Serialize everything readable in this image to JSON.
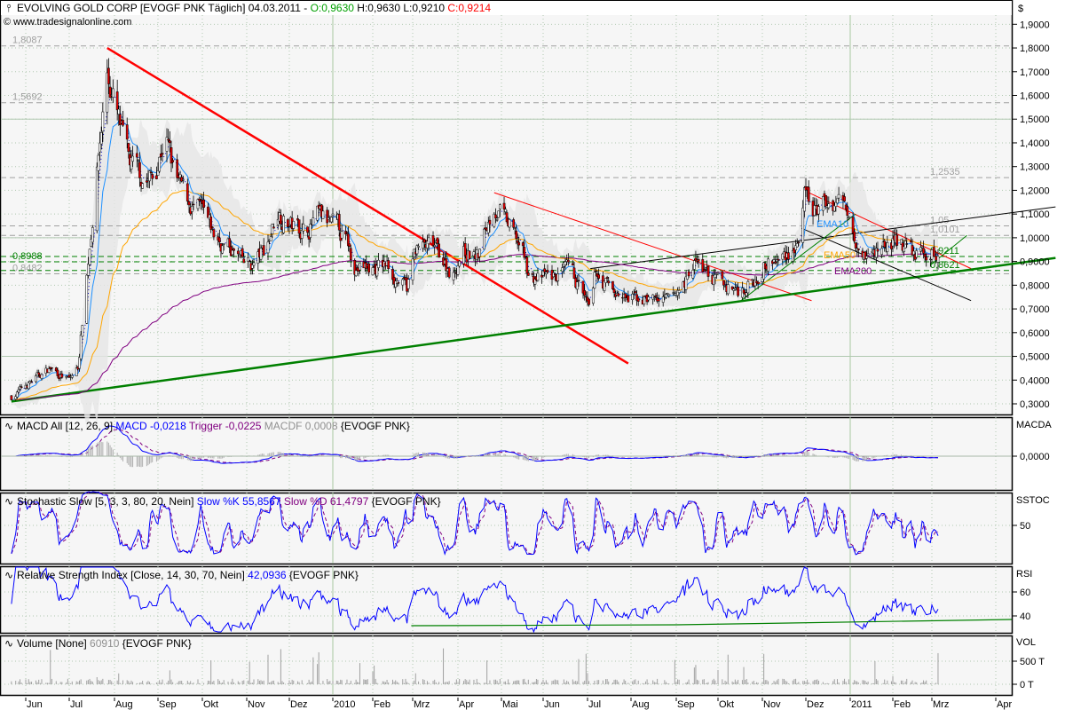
{
  "header": {
    "title": "EVOLVING GOLD CORP [EVOGF PNK  Täglich] 04.03.2011 - ",
    "open": "O:0,9630",
    "high": " H:0,9630",
    "low": " L:0,9210",
    "close": " C:0,9214",
    "copyright": "www.tradesignalonline.com",
    "currency": "$"
  },
  "colors": {
    "open": "#00a000",
    "close": "#ff0000",
    "up_candle": "#ffffff",
    "down_candle": "#e00000",
    "ema10": "#1e90ff",
    "ema50": "#ffa500",
    "ema200": "#800080",
    "trend_red": "#ff0000",
    "trend_green": "#008000",
    "trend_black": "#000000"
  },
  "price_axis": [
    "1,9000",
    "1,8000",
    "1,7000",
    "1,6000",
    "1,5000",
    "1,4000",
    "1,3000",
    "1,2000",
    "1,1000",
    "1,0000",
    "0,9000",
    "0,8000",
    "0,7000",
    "0,6000",
    "0,5000",
    "0,4000",
    "0,3000"
  ],
  "levels": [
    {
      "value": 1.8087,
      "label": "1,8087",
      "color": "#a0a0a0",
      "side": "left"
    },
    {
      "value": 1.5692,
      "label": "1,5692",
      "color": "#a0a0a0",
      "side": "left"
    },
    {
      "value": 0.8988,
      "label": "0,8988",
      "color": "#008000",
      "side": "left"
    },
    {
      "value": 0.8482,
      "label": "0,8482",
      "color": "#a0a0a0",
      "side": "left"
    },
    {
      "value": 1.2535,
      "label": "1,2535",
      "color": "#a0a0a0",
      "side": "right"
    },
    {
      "value": 1.05,
      "label": "1,05",
      "color": "#a0a0a0",
      "side": "right"
    },
    {
      "value": 1.0101,
      "label": "1,0101",
      "color": "#a0a0a0",
      "side": "right"
    },
    {
      "value": 0.9211,
      "label": "0,9211",
      "color": "#008000",
      "side": "right"
    },
    {
      "value": 0.8621,
      "label": "0,8621",
      "color": "#008000",
      "side": "right"
    }
  ],
  "ema_labels": {
    "ema10": "EMA10",
    "ema50": "EMA50",
    "ema200": "EMA200"
  },
  "macd": {
    "title": "MACD All [12, 26, 9]",
    "macd": " MACD -0,0218",
    "trigger": " Trigger -0,0225",
    "macdf": " MACDF 0,0008",
    "symbol": " {EVOGF PNK}",
    "axis_name": "MACDA",
    "axis_ticks": [
      "0,0000"
    ]
  },
  "stochastic": {
    "title": "Stochastic Slow [5, 3, 3, 80, 20, Nein]",
    "k": " Slow %K 55,8567",
    "d": " Slow %D 61,4797",
    "symbol": " {EVOGF PNK}",
    "axis_name": "SSTOC",
    "axis_ticks": [
      "50"
    ]
  },
  "rsi": {
    "title": "Relative Strength Index [Close, 14, 30, 70, Nein]",
    "value": " 42,0936",
    "symbol": " {EVOGF PNK}",
    "axis_name": "RSI",
    "axis_ticks": [
      "60",
      "40"
    ]
  },
  "volume": {
    "title": "Volume [None]",
    "value": " 60910",
    "symbol": " {EVOGF PNK}",
    "axis_name": "VOL",
    "axis_ticks": [
      "500 T",
      "0 T"
    ]
  },
  "x_axis": [
    "Jun",
    "Jul",
    "Aug",
    "Sep",
    "Okt",
    "Nov",
    "Dez",
    "2010",
    "Feb",
    "Mrz",
    "Apr",
    "Mai",
    "Jun",
    "Jul",
    "Aug",
    "Sep",
    "Okt",
    "Nov",
    "Dez",
    "2011",
    "Feb",
    "Mrz",
    "Apr"
  ],
  "chart_data": {
    "type": "candlestick",
    "symbol": "EVOGF PNK",
    "ylim": [
      0.3,
      1.9
    ],
    "grid": true,
    "closes": [
      [
        "2009-05-22",
        0.33
      ],
      [
        "2009-06-06",
        0.4
      ],
      [
        "2009-06-18",
        0.45
      ],
      [
        "2009-07-01",
        0.4
      ],
      [
        "2009-07-07",
        0.45
      ],
      [
        "2009-07-13",
        0.85
      ],
      [
        "2009-07-17",
        1.1
      ],
      [
        "2009-07-21",
        1.35
      ],
      [
        "2009-07-27",
        1.7
      ],
      [
        "2009-08-05",
        1.45
      ],
      [
        "2009-08-11",
        1.3
      ],
      [
        "2009-08-20",
        1.25
      ],
      [
        "2009-08-29",
        1.25
      ],
      [
        "2009-09-06",
        1.45
      ],
      [
        "2009-09-12",
        1.25
      ],
      [
        "2009-09-21",
        1.15
      ],
      [
        "2009-09-30",
        1.1
      ],
      [
        "2009-10-09",
        1.0
      ],
      [
        "2009-10-21",
        0.95
      ],
      [
        "2009-10-30",
        0.88
      ],
      [
        "2009-11-05",
        0.88
      ],
      [
        "2009-11-14",
        0.95
      ],
      [
        "2009-11-23",
        1.12
      ],
      [
        "2009-12-03",
        1.05
      ],
      [
        "2009-12-12",
        1.03
      ],
      [
        "2009-12-21",
        1.08
      ],
      [
        "2009-12-30",
        1.05
      ],
      [
        "2010-01-10",
        1.0
      ],
      [
        "2010-01-19",
        0.88
      ],
      [
        "2010-01-29",
        0.87
      ],
      [
        "2010-02-11",
        0.88
      ],
      [
        "2010-02-25",
        0.78
      ],
      [
        "2010-03-03",
        0.95
      ],
      [
        "2010-03-16",
        0.95
      ],
      [
        "2010-03-29",
        0.85
      ],
      [
        "2010-04-03",
        0.95
      ],
      [
        "2010-04-15",
        0.92
      ],
      [
        "2010-04-26",
        1.15
      ],
      [
        "2010-05-05",
        1.05
      ],
      [
        "2010-05-16",
        0.95
      ],
      [
        "2010-05-22",
        0.83
      ],
      [
        "2010-06-06",
        0.83
      ],
      [
        "2010-06-18",
        0.85
      ],
      [
        "2010-06-27",
        0.78
      ],
      [
        "2010-07-03",
        0.66
      ],
      [
        "2010-07-07",
        0.85
      ],
      [
        "2010-07-18",
        0.78
      ],
      [
        "2010-07-30",
        0.73
      ],
      [
        "2010-08-12",
        0.75
      ],
      [
        "2010-08-28",
        0.72
      ],
      [
        "2010-09-08",
        0.82
      ],
      [
        "2010-09-14",
        0.9
      ],
      [
        "2010-09-23",
        0.85
      ],
      [
        "2010-10-03",
        0.8
      ],
      [
        "2010-10-16",
        0.78
      ],
      [
        "2010-10-26",
        0.82
      ],
      [
        "2010-11-01",
        0.9
      ],
      [
        "2010-11-13",
        0.9
      ],
      [
        "2010-11-20",
        0.95
      ],
      [
        "2010-11-27",
        1.0
      ],
      [
        "2010-11-30",
        1.15
      ],
      [
        "2010-12-05",
        1.1
      ],
      [
        "2010-12-14",
        1.13
      ],
      [
        "2010-12-23",
        1.17
      ],
      [
        "2011-01-01",
        1.1
      ],
      [
        "2011-01-07",
        1.0
      ],
      [
        "2011-01-16",
        0.92
      ],
      [
        "2011-01-27",
        0.98
      ],
      [
        "2011-02-05",
        0.98
      ],
      [
        "2011-02-15",
        0.93
      ],
      [
        "2011-03-04",
        0.9214
      ]
    ],
    "trendlines": [
      {
        "from": [
          "2009-07-27",
          1.8
        ],
        "to": [
          "2010-07-30",
          0.47
        ],
        "color": "#ff0000",
        "weight": "thick"
      },
      {
        "from": [
          "2010-04-26",
          1.19
        ],
        "to": [
          "2010-12-05",
          0.735
        ],
        "color": "#ff0000",
        "weight": "thin"
      },
      {
        "from": [
          "2010-12-03",
          1.19
        ],
        "to": [
          "2011-03-20",
          0.87
        ],
        "color": "#ff0000",
        "weight": "thin"
      },
      {
        "from": [
          "2009-05-22",
          0.31
        ],
        "to": [
          "2011-04-30",
          0.915
        ],
        "color": "#008000",
        "weight": "thick"
      },
      {
        "from": [
          "2010-07-03",
          0.87
        ],
        "to": [
          "2011-04-30",
          1.13
        ],
        "color": "#000000",
        "weight": "thin"
      },
      {
        "from": [
          "2010-11-28",
          1.04
        ],
        "to": [
          "2011-03-20",
          0.735
        ],
        "color": "#000000",
        "weight": "thin"
      },
      {
        "from": [
          "2010-10-16",
          0.73
        ],
        "to": [
          "2011-01-05",
          1.1
        ],
        "color": "#008000",
        "weight": "thin"
      },
      {
        "from": [
          "2011-02-28",
          0.885
        ],
        "to": [
          "2011-03-18",
          1.01
        ],
        "color": "#008000",
        "weight": "thin"
      }
    ]
  }
}
